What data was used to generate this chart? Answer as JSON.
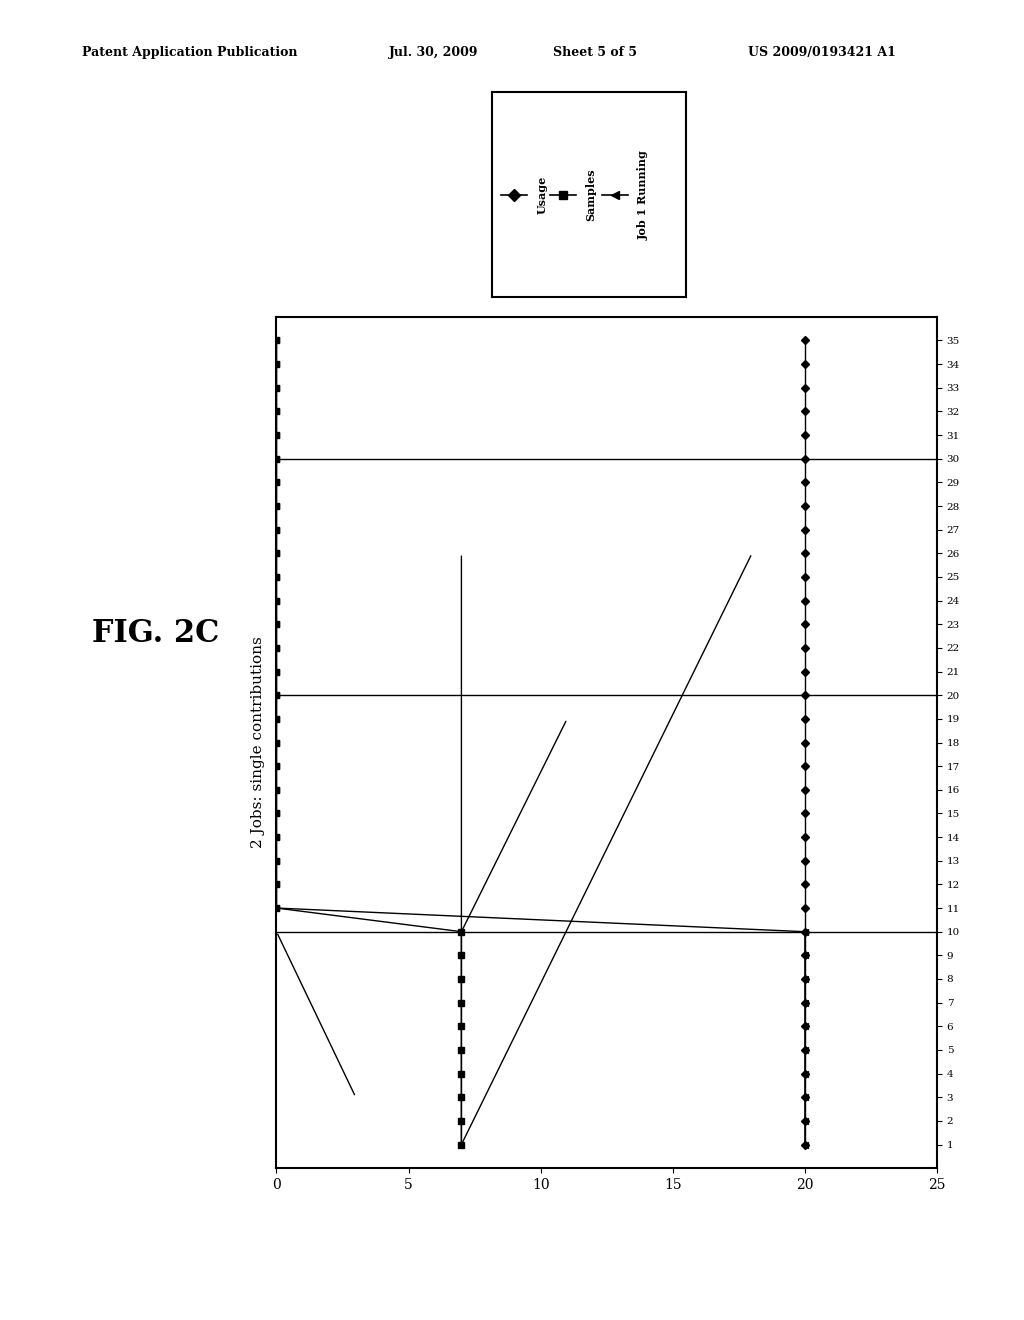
{
  "title": "2 Jobs: single contributions",
  "ylim": [
    0,
    25
  ],
  "yticks": [
    0,
    5,
    10,
    15,
    20,
    25
  ],
  "xlim": [
    0,
    36
  ],
  "xticks": [
    1,
    2,
    3,
    4,
    5,
    6,
    7,
    8,
    9,
    10,
    11,
    12,
    13,
    14,
    15,
    16,
    17,
    18,
    19,
    20,
    21,
    22,
    23,
    24,
    25,
    26,
    27,
    28,
    29,
    30,
    31,
    32,
    33,
    34,
    35
  ],
  "background_color": "#ffffff",
  "plot_bg_color": "#ffffff",
  "legend_entries": [
    "Usage",
    "Samples",
    "Job 1 Running"
  ],
  "fig_label": "FIG. 2C",
  "patent_header": "Patent Application Publication",
  "patent_date": "Jul. 30, 2009",
  "patent_sheet": "Sheet 5 of 5",
  "patent_num": "US 2009/0193421 A1",
  "n_samples": 35,
  "usage_value": 20,
  "samples_y_region1": 7.0,
  "samples_region1_end": 10,
  "job1_region1_end": 10,
  "annotation_lines": [
    {
      "x1": 1,
      "y1": 7,
      "x2": 26,
      "y2": 18
    },
    {
      "x1": 1,
      "y1": 7,
      "x2": 26,
      "y2": 7
    },
    {
      "x1": 10,
      "y1": 7,
      "x2": 19,
      "y2": 11
    },
    {
      "x1": 10,
      "y1": 0,
      "x2": 3,
      "y2": 3
    }
  ]
}
